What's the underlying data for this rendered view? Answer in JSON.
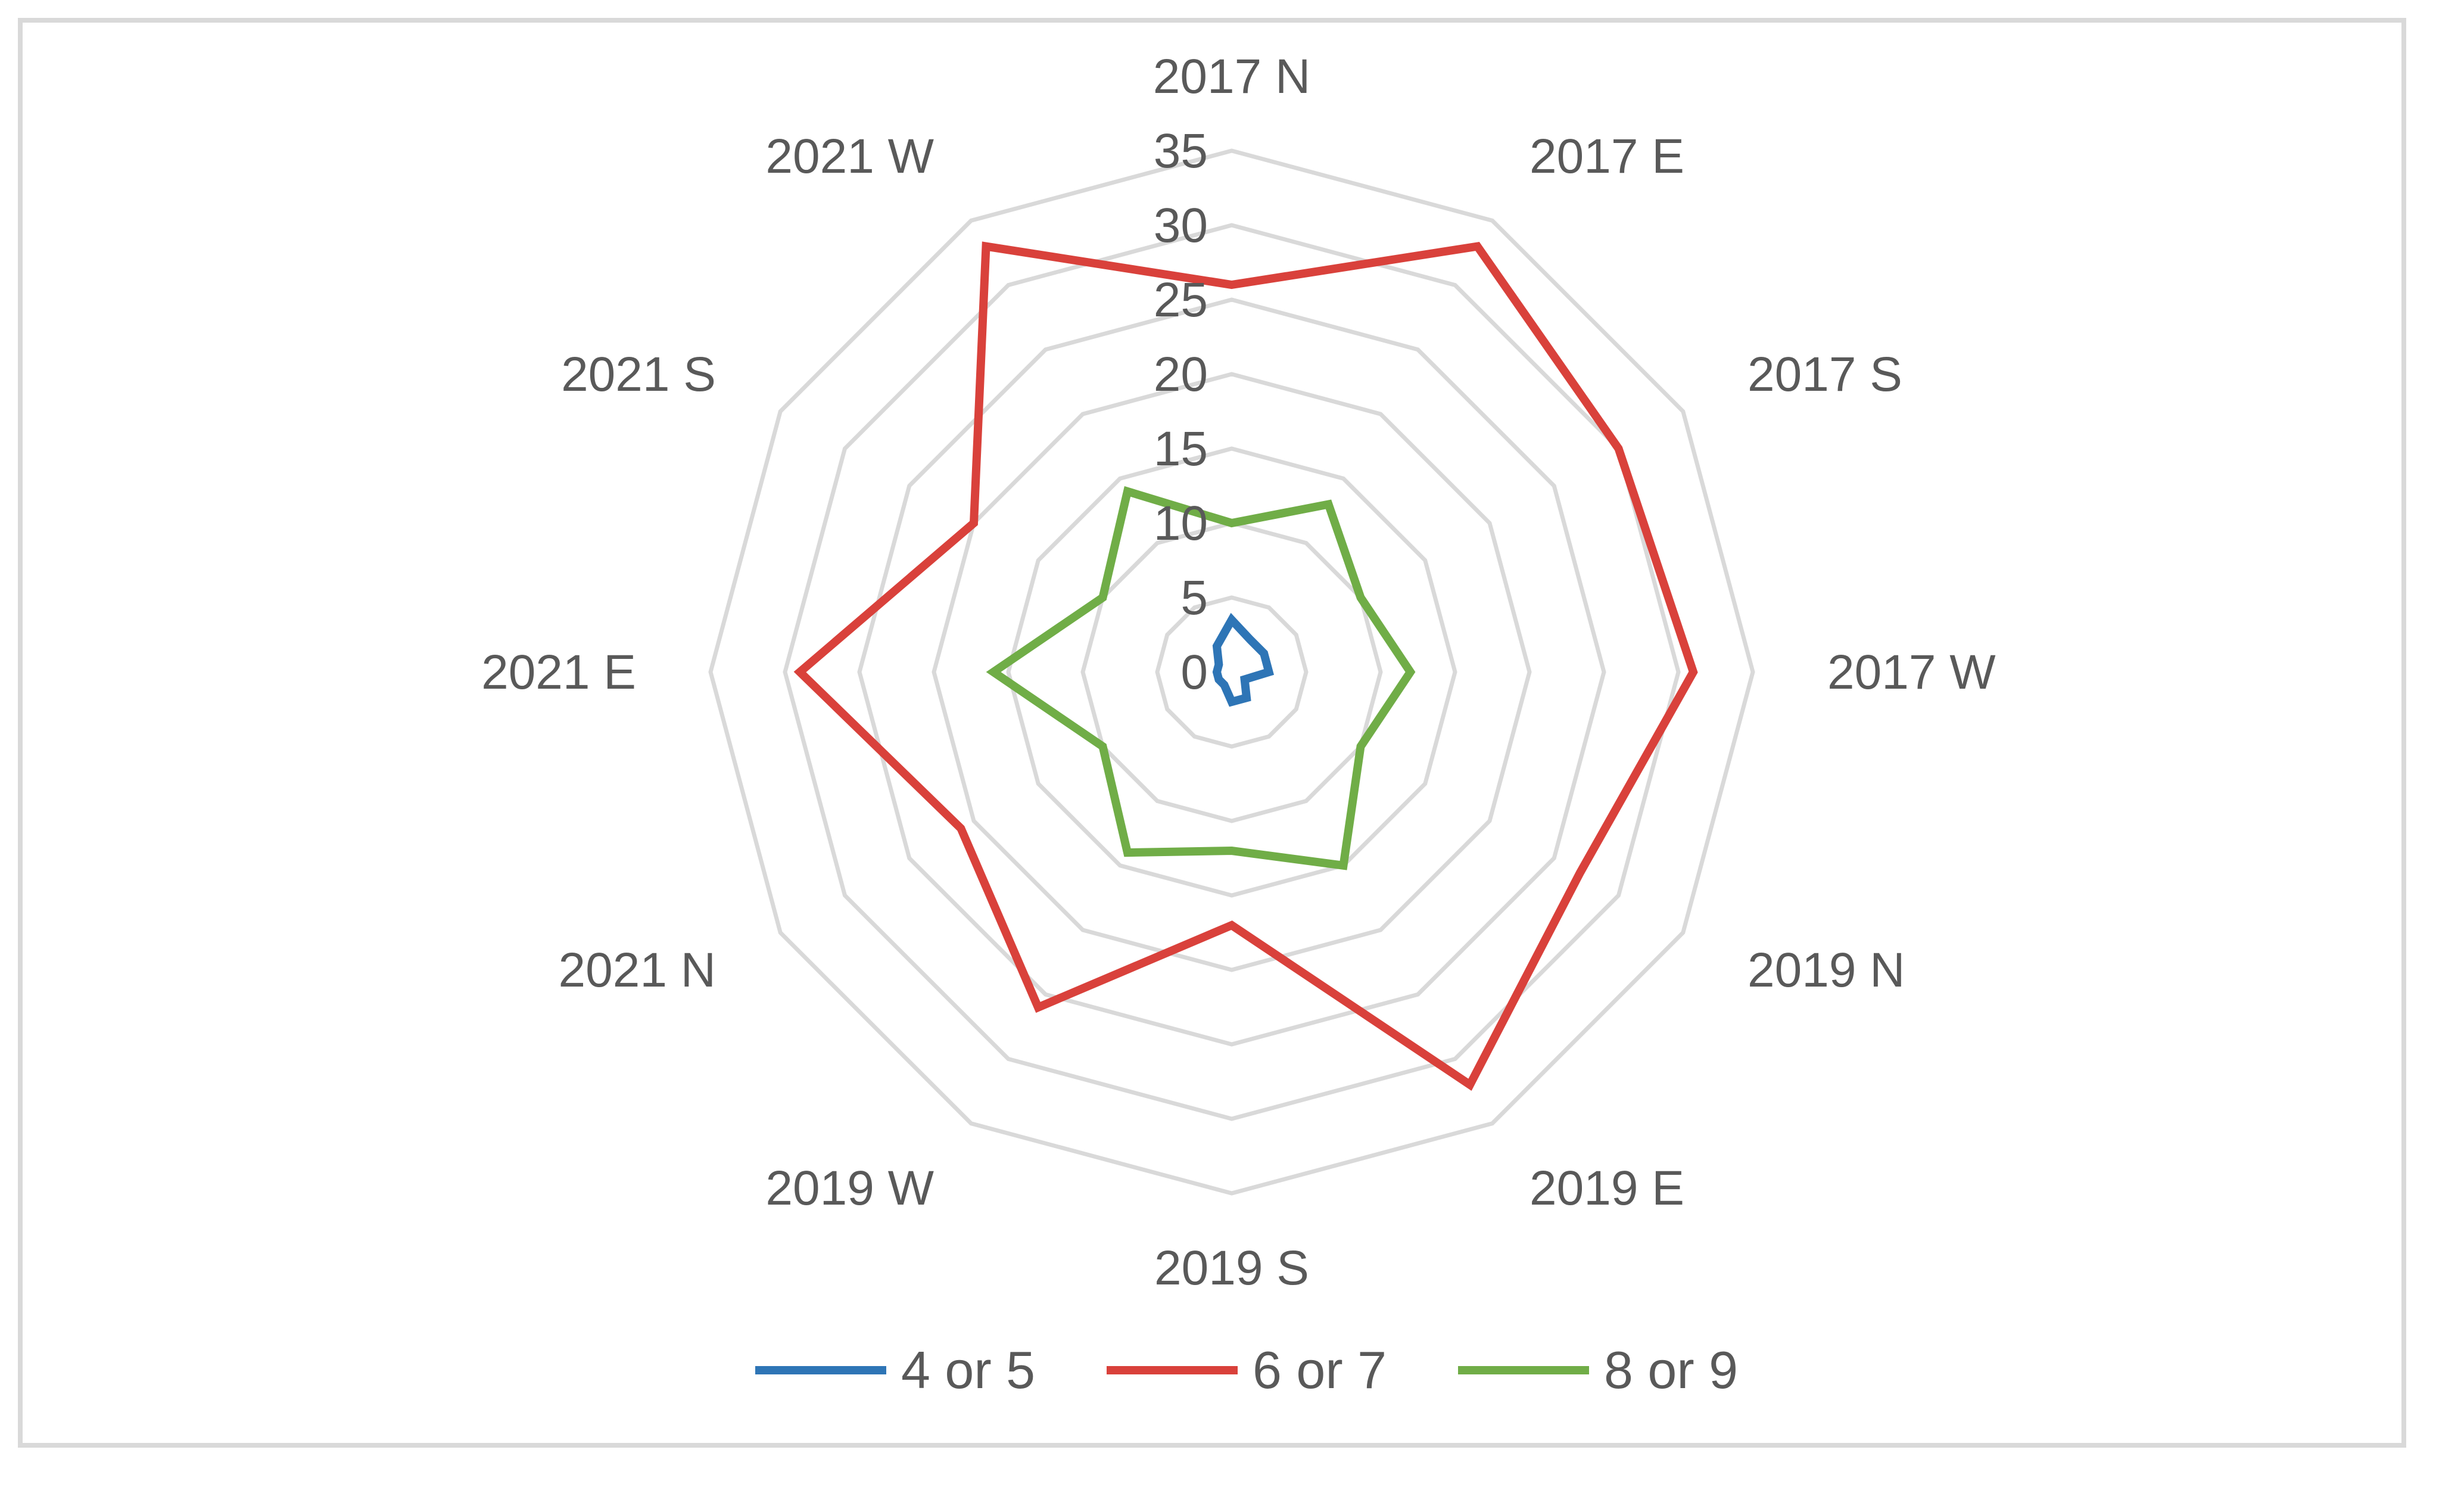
{
  "chart_data": {
    "type": "radar",
    "categories": [
      "2017 N",
      "2017 E",
      "2017 S",
      "2017 W",
      "2019 N",
      "2019 E",
      "2019 S",
      "2019 W",
      "2021 N",
      "2021 E",
      "2021 S",
      "2021 W"
    ],
    "radial_ticks": [
      "0",
      "5",
      "10",
      "15",
      "20",
      "25",
      "30",
      "35"
    ],
    "rlim": [
      0,
      35
    ],
    "grid": true,
    "legend_position": "bottom",
    "series": [
      {
        "name": "4 or 5",
        "color": "#2e75b6",
        "values": [
          3.5,
          2.5,
          2.5,
          2.5,
          1,
          2,
          2,
          1,
          1,
          1,
          1,
          2
        ]
      },
      {
        "name": "6 or 7",
        "color": "#d9413b",
        "values": [
          26,
          33,
          30,
          31,
          27,
          32,
          17,
          26,
          21,
          29,
          20,
          33
        ]
      },
      {
        "name": "8 or 9",
        "color": "#70ad47",
        "values": [
          10,
          13,
          10,
          12,
          10,
          15,
          12,
          14,
          10,
          16,
          10,
          14
        ]
      }
    ]
  }
}
